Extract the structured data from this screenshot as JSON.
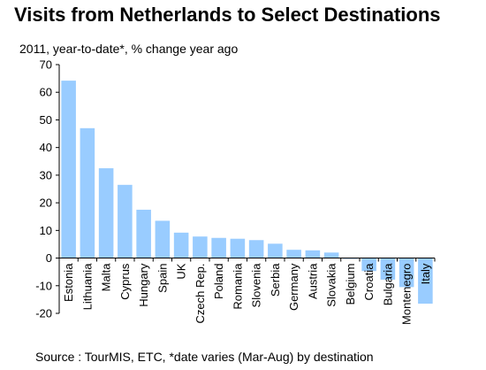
{
  "title": "Visits from Netherlands to Select Destinations",
  "subtitle": "2011, year-to-date*, % change year ago",
  "source": "Source : TourMIS, ETC, *date varies (Mar-Aug) by destination",
  "colors": {
    "bar": "#99ccff",
    "axis": "#000000"
  },
  "chart_data": {
    "type": "bar",
    "title": "Visits from Netherlands to Select Destinations",
    "subtitle": "2011, year-to-date*, % change year ago",
    "xlabel": "",
    "ylabel": "",
    "ylim": [
      -20,
      70
    ],
    "yticks": [
      -20,
      -10,
      0,
      10,
      20,
      30,
      40,
      50,
      60,
      70
    ],
    "grid": false,
    "categories": [
      "Estonia",
      "Lithuania",
      "Malta",
      "Cyprus",
      "Hungary",
      "Spain",
      "UK",
      "Czech Rep.",
      "Poland",
      "Romania",
      "Slovenia",
      "Serbia",
      "Germany",
      "Austria",
      "Slovakia",
      "Belgium",
      "Croatia",
      "Bulgaria",
      "Montenegro",
      "Italy"
    ],
    "values": [
      64.2,
      47.0,
      32.5,
      26.5,
      17.5,
      13.5,
      9.2,
      7.8,
      7.3,
      7.0,
      6.5,
      5.2,
      3.0,
      2.8,
      2.0,
      -0.3,
      -4.7,
      -7.8,
      -10.5,
      -16.5
    ]
  }
}
